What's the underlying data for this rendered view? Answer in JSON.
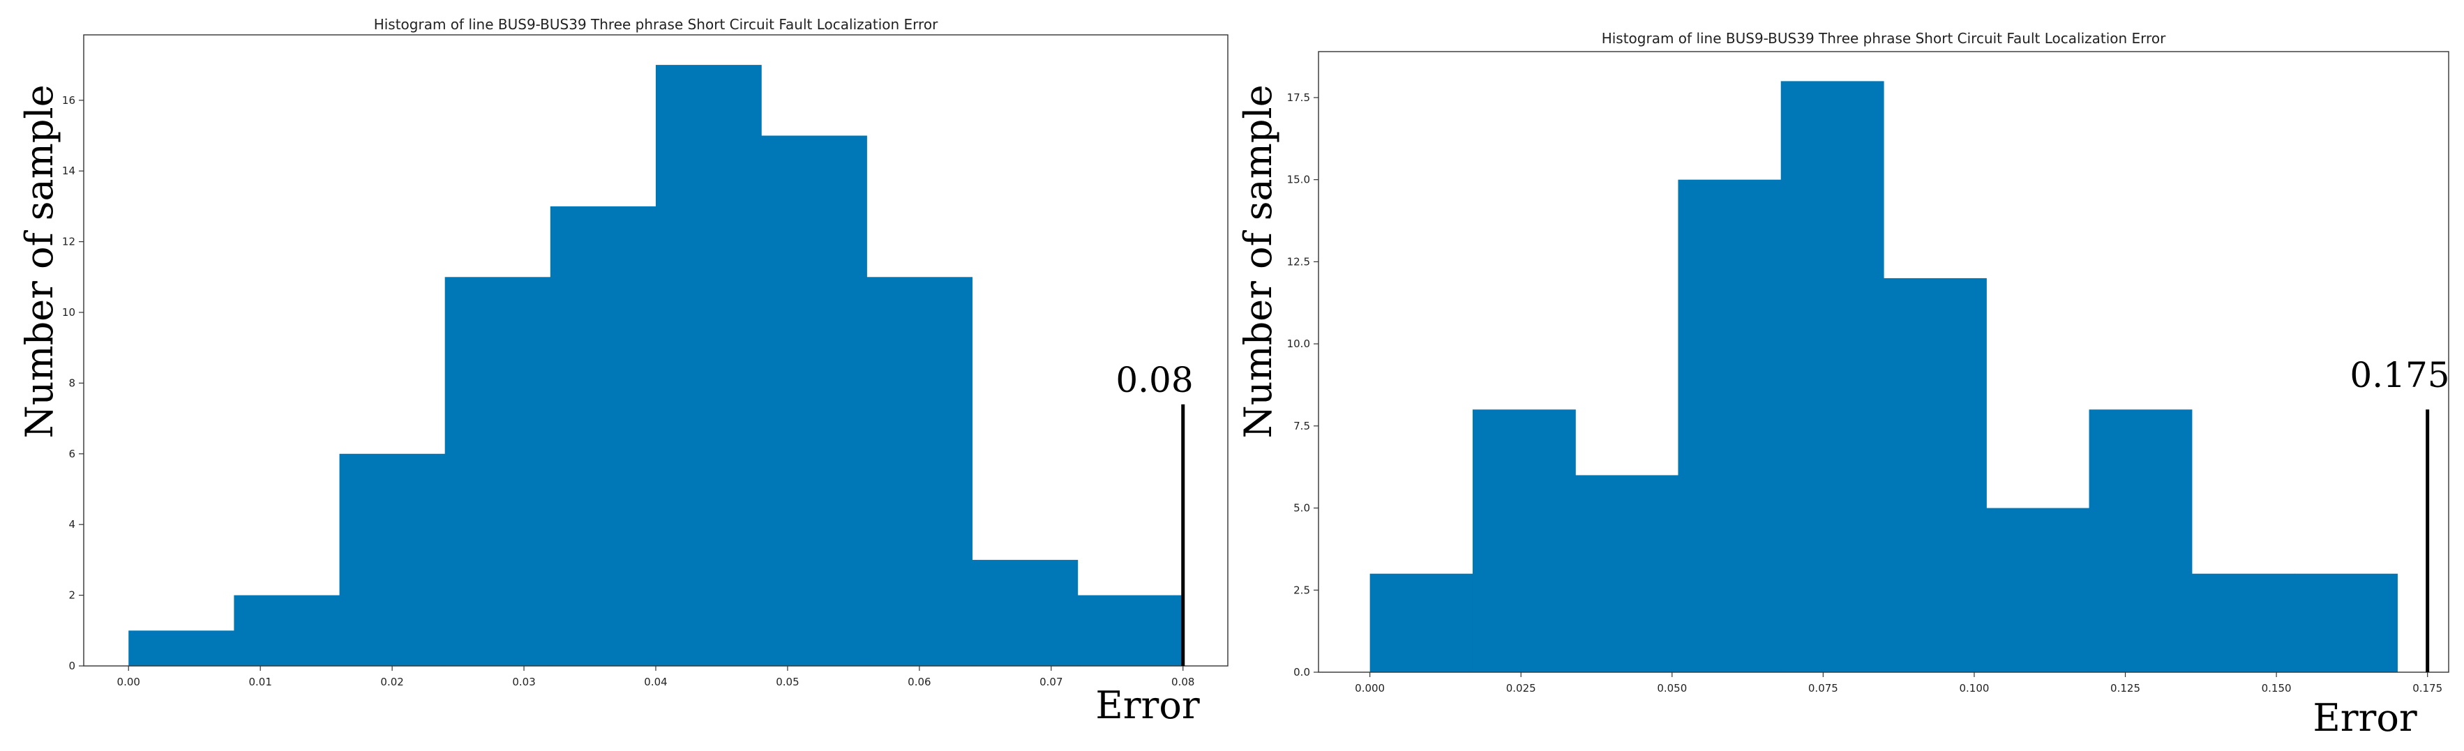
{
  "chart_data": [
    {
      "type": "bar",
      "title": "Histogram of line BUS9-BUS39 Three phrase Short Circuit Fault Localization Error",
      "xlabel": "Error",
      "ylabel": "Number of sample",
      "bin_edges": [
        0.0,
        0.008,
        0.016,
        0.024,
        0.032,
        0.04,
        0.048,
        0.056,
        0.064,
        0.072,
        0.08
      ],
      "values": [
        1,
        2,
        6,
        11,
        13,
        17,
        15,
        11,
        3,
        2
      ],
      "xlim": [
        -0.0034,
        0.0834
      ],
      "ylim": [
        0,
        17.85
      ],
      "xticks": [
        0.0,
        0.01,
        0.02,
        0.03,
        0.04,
        0.05,
        0.06,
        0.07,
        0.08
      ],
      "xtick_labels": [
        "0.00",
        "0.01",
        "0.02",
        "0.03",
        "0.04",
        "0.05",
        "0.06",
        "0.07",
        "0.08"
      ],
      "yticks": [
        0,
        2,
        4,
        6,
        8,
        10,
        12,
        14,
        16
      ],
      "ytick_labels": [
        "0",
        "2",
        "4",
        "6",
        "8",
        "10",
        "12",
        "14",
        "16"
      ],
      "annotation": {
        "label": "0.08",
        "x": 0.08,
        "y_top": 7.4
      },
      "bar_color": "#0077b6",
      "grid": false
    },
    {
      "type": "bar",
      "title": "Histogram of line BUS9-BUS39 Three phrase Short Circuit Fault Localization Error",
      "xlabel": "Error",
      "ylabel": "Number of sample",
      "bin_edges": [
        0.0,
        0.017,
        0.034,
        0.051,
        0.068,
        0.085,
        0.102,
        0.119,
        0.136,
        0.153,
        0.17
      ],
      "values": [
        3,
        8,
        6,
        15,
        18,
        12,
        5,
        8,
        3,
        3
      ],
      "xlim": [
        -0.0085,
        0.1785
      ],
      "ylim": [
        0,
        18.9
      ],
      "xticks": [
        0.0,
        0.025,
        0.05,
        0.075,
        0.1,
        0.125,
        0.15,
        0.175
      ],
      "xtick_labels": [
        "0.000",
        "0.025",
        "0.050",
        "0.075",
        "0.100",
        "0.125",
        "0.150",
        "0.175"
      ],
      "yticks": [
        0,
        2.5,
        5.0,
        7.5,
        10.0,
        12.5,
        15.0,
        17.5
      ],
      "ytick_labels": [
        "0.0",
        "2.5",
        "5.0",
        "7.5",
        "10.0",
        "12.5",
        "15.0",
        "17.5"
      ],
      "annotation": {
        "label": "0.175",
        "x": 0.175,
        "y_top": 8.0
      },
      "bar_color": "#0077b6",
      "grid": false
    }
  ]
}
